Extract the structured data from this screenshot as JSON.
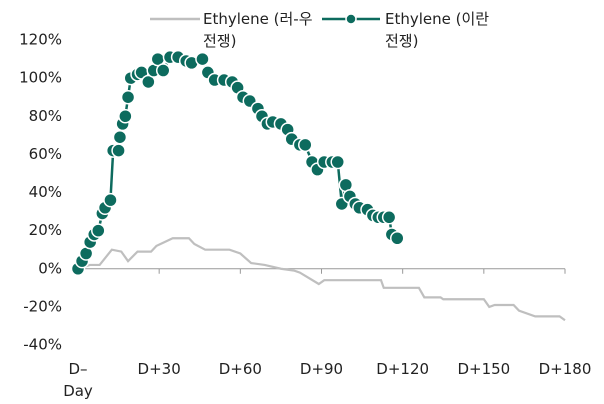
{
  "chart_data": {
    "type": "line",
    "xlim": [
      0,
      180
    ],
    "xticks": [
      {
        "value": 0,
        "label": "D–Day"
      },
      {
        "value": 30,
        "label": "D+30"
      },
      {
        "value": 60,
        "label": "D+60"
      },
      {
        "value": 90,
        "label": "D+90"
      },
      {
        "value": 120,
        "label": "D+120"
      },
      {
        "value": 150,
        "label": "D+150"
      },
      {
        "value": 180,
        "label": "D+180"
      }
    ],
    "ylim": [
      -40,
      120
    ],
    "yticks": [
      {
        "value": -40,
        "label": "-40%"
      },
      {
        "value": -20,
        "label": "-20%"
      },
      {
        "value": 0,
        "label": "0%"
      },
      {
        "value": 20,
        "label": "20%"
      },
      {
        "value": 40,
        "label": "40%"
      },
      {
        "value": 60,
        "label": "60%"
      },
      {
        "value": 80,
        "label": "80%"
      },
      {
        "value": 100,
        "label": "100%"
      },
      {
        "value": 120,
        "label": "120%"
      }
    ],
    "series": [
      {
        "name": "Ethylene (러-우 전쟁)",
        "color": "#bfbfbf",
        "markers": false,
        "x": [
          0,
          4.4,
          8,
          12.5,
          16,
          18.5,
          22,
          27,
          29,
          35,
          41,
          43,
          47,
          56,
          60,
          64,
          69,
          75,
          80,
          82,
          89,
          91,
          112,
          113,
          126,
          128,
          134,
          135,
          150,
          152,
          154,
          161,
          163,
          169,
          178,
          180
        ],
        "values": [
          0,
          2,
          2,
          10,
          9,
          4,
          9,
          9,
          12,
          16,
          16,
          13,
          10,
          10,
          8,
          3,
          2,
          0,
          -1,
          -2,
          -8,
          -6,
          -6,
          -10,
          -10,
          -15,
          -15,
          -16,
          -16,
          -20,
          -19,
          -19,
          -22,
          -25,
          -25,
          -27
        ]
      },
      {
        "name": "Ethylene (이란 전쟁)",
        "color": "#0d6b5e",
        "markers": true,
        "x": [
          0,
          1.5,
          3,
          4.5,
          6,
          7.5,
          9,
          10,
          12,
          13,
          15,
          15.5,
          16.5,
          17.5,
          18.5,
          19.5,
          22,
          23.5,
          26,
          28,
          29.5,
          31.5,
          34,
          37,
          40,
          42,
          46,
          48,
          50.5,
          54,
          57,
          59,
          61,
          63.5,
          66.5,
          68,
          70,
          72,
          75,
          77.5,
          79,
          82,
          84,
          86.5,
          88.5,
          91,
          94,
          96,
          97.5,
          99,
          100.5,
          102.5,
          104,
          107,
          109,
          111,
          113,
          115,
          116,
          118
        ],
        "values": [
          0,
          4,
          8,
          14,
          18,
          20,
          29,
          32,
          36,
          62,
          62,
          69,
          76,
          80,
          90,
          100,
          102,
          103,
          98,
          104,
          110,
          104,
          111,
          111,
          109,
          108,
          110,
          103,
          99,
          99,
          98,
          95,
          90,
          88,
          84,
          80,
          76,
          77,
          76,
          73,
          68,
          65,
          65,
          56,
          52,
          56,
          56,
          56,
          34,
          44,
          38,
          34,
          32,
          31,
          28,
          27,
          27,
          27,
          18,
          16
        ]
      }
    ]
  }
}
